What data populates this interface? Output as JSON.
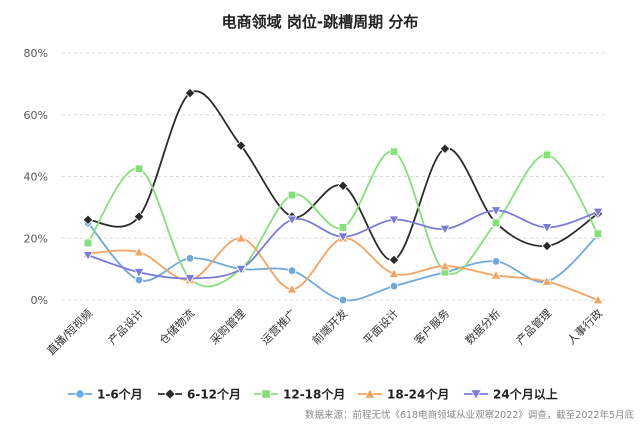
{
  "chart_data": {
    "type": "line",
    "title": "电商领域 岗位-跳槽周期 分布",
    "categories": [
      "直播/短视频",
      "产品设计",
      "仓储物流",
      "采购管理",
      "运营推广",
      "前端开发",
      "平面设计",
      "客户服务",
      "数据分析",
      "产品管理",
      "人事行政"
    ],
    "y_ticks": [
      "0%",
      "20%",
      "40%",
      "60%",
      "80%"
    ],
    "ylim": [
      0,
      80
    ],
    "grid": true,
    "smooth": true,
    "legend_position": "bottom",
    "series": [
      {
        "name": "1-6个月",
        "color": "#6fa8dc",
        "marker": "circle",
        "values": [
          25,
          6.5,
          13.5,
          10,
          9.5,
          0,
          4.5,
          9,
          12.5,
          6,
          21
        ]
      },
      {
        "name": "6-12个月",
        "color": "#2b2b2b",
        "marker": "diamond",
        "values": [
          26,
          27,
          67,
          50,
          27,
          37,
          13,
          49,
          25,
          17.5,
          28
        ]
      },
      {
        "name": "12-18个月",
        "color": "#86e07a",
        "marker": "square",
        "values": [
          18.5,
          42.5,
          7,
          10,
          34,
          23.5,
          48,
          9,
          25,
          47,
          21.5
        ]
      },
      {
        "name": "18-24个月",
        "color": "#f4a460",
        "marker": "triangle-up",
        "values": [
          15,
          15.5,
          6.5,
          20,
          3.5,
          20,
          8.5,
          11,
          8,
          6,
          0
        ]
      },
      {
        "name": "24个月以上",
        "color": "#7b7bd9",
        "marker": "triangle-down",
        "values": [
          14.5,
          9,
          7,
          10,
          26,
          20.5,
          26,
          23,
          29,
          23.5,
          28.5
        ]
      }
    ],
    "source_note": "数据来源：前程无忧《618电商领域从业观察2022》调查，截至2022年5月底"
  }
}
